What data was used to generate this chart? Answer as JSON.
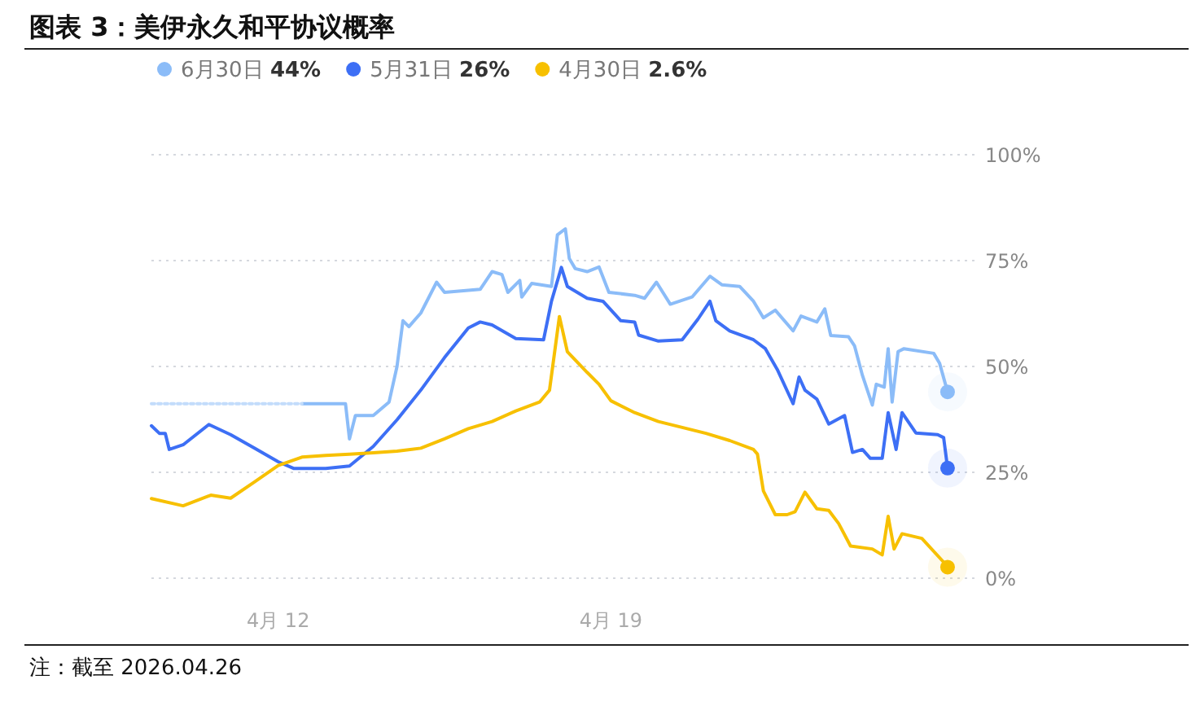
{
  "chart_data": {
    "type": "line",
    "title": "图表 3：美伊永久和平协议概率",
    "annotations": [
      "注：截至 2026.04.26"
    ],
    "xlim": [
      "2026-04-09T08:00",
      "2026-04-26T16:00"
    ],
    "xticks": [
      {
        "value": "2026-04-12",
        "label": "4月 12"
      },
      {
        "value": "2026-04-19",
        "label": "4月 19"
      }
    ],
    "ylim": [
      0,
      100
    ],
    "yticks": [
      {
        "value": 0,
        "label": "0%"
      },
      {
        "value": 25,
        "label": "25%"
      },
      {
        "value": 50,
        "label": "50%"
      },
      {
        "value": 75,
        "label": "75%"
      },
      {
        "value": 100,
        "label": "100%"
      }
    ],
    "grid": "y",
    "legend": "top left",
    "line_style": "solid",
    "series": [
      {
        "name": "6月30日 44%",
        "color": "#8bbcf8",
        "x": [
          "2026-04-12T12:00",
          "2026-04-13T10:00",
          "2026-04-13T12:00",
          "2026-04-13T15:00",
          "2026-04-14T00:00",
          "2026-04-14T08:00",
          "2026-04-14T12:00",
          "2026-04-14T15:00",
          "2026-04-14T18:00",
          "2026-04-15T00:00",
          "2026-04-15T08:00",
          "2026-04-15T12:00",
          "2026-04-16T06:00",
          "2026-04-16T12:00",
          "2026-04-16T17:00",
          "2026-04-16T20:00",
          "2026-04-17T02:00",
          "2026-04-17T03:00",
          "2026-04-17T08:00",
          "2026-04-17T18:00",
          "2026-04-17T21:00",
          "2026-04-18T01:00",
          "2026-04-18T03:00",
          "2026-04-18T06:00",
          "2026-04-18T12:00",
          "2026-04-18T18:00",
          "2026-04-18T23:00",
          "2026-04-19T12:00",
          "2026-04-19T17:00",
          "2026-04-19T23:00",
          "2026-04-20T06:00",
          "2026-04-20T17:00",
          "2026-04-21T02:00",
          "2026-04-21T08:00",
          "2026-04-21T17:00",
          "2026-04-22T00:00",
          "2026-04-22T05:00",
          "2026-04-22T11:00",
          "2026-04-22T20:00",
          "2026-04-23T00:00",
          "2026-04-23T08:00",
          "2026-04-23T12:00",
          "2026-04-23T15:00",
          "2026-04-24T00:00",
          "2026-04-24T03:00",
          "2026-04-24T07:00",
          "2026-04-24T12:00",
          "2026-04-24T14:00",
          "2026-04-24T18:00",
          "2026-04-24T20:00",
          "2026-04-24T22:00",
          "2026-04-25T01:00",
          "2026-04-25T04:00",
          "2026-04-25T19:00",
          "2026-04-25T22:00",
          "2026-04-26T02:00"
        ],
        "values": [
          41.2,
          41.2,
          32.9,
          38.4,
          38.4,
          41.6,
          50,
          60.8,
          59.4,
          62.6,
          69.9,
          67.5,
          68.2,
          72.4,
          71.7,
          67.5,
          70.3,
          66.4,
          69.6,
          68.9,
          81.1,
          82.5,
          75.5,
          73.1,
          72.4,
          73.5,
          67.5,
          66.8,
          66.1,
          69.9,
          64.7,
          66.4,
          71.3,
          69.3,
          68.9,
          65.4,
          61.5,
          63.3,
          58.4,
          61.9,
          60.5,
          63.6,
          57.3,
          57,
          54.9,
          47.9,
          40.9,
          45.8,
          45.1,
          54.2,
          41.6,
          53.5,
          54.2,
          53.1,
          50.7,
          44
        ]
      },
      {
        "color": "#c2dcfb",
        "line_style": "dotted",
        "marker": "none",
        "x": [
          "2026-04-09T08:00",
          "2026-04-12T12:00"
        ],
        "values": [
          41.2,
          41.2
        ]
      },
      {
        "name": "5月31日 26%",
        "color": "#3d6ff5",
        "x": [
          "2026-04-09T08:00",
          "2026-04-09T12:00",
          "2026-04-09T15:00",
          "2026-04-09T17:00",
          "2026-04-10T00:00",
          "2026-04-10T13:00",
          "2026-04-11T00:00",
          "2026-04-11T12:00",
          "2026-04-12T00:00",
          "2026-04-12T08:00",
          "2026-04-13T00:00",
          "2026-04-13T12:00",
          "2026-04-14T00:00",
          "2026-04-14T12:00",
          "2026-04-15T00:00",
          "2026-04-15T12:00",
          "2026-04-16T00:00",
          "2026-04-16T06:00",
          "2026-04-16T12:00",
          "2026-04-17T00:00",
          "2026-04-17T14:00",
          "2026-04-17T18:00",
          "2026-04-17T23:00",
          "2026-04-18T02:00",
          "2026-04-18T12:00",
          "2026-04-18T20:00",
          "2026-04-19T05:00",
          "2026-04-19T12:00",
          "2026-04-19T14:00",
          "2026-04-20T00:00",
          "2026-04-20T12:00",
          "2026-04-20T20:00",
          "2026-04-21T02:00",
          "2026-04-21T05:00",
          "2026-04-21T12:00",
          "2026-04-22T00:00",
          "2026-04-22T06:00",
          "2026-04-22T12:00",
          "2026-04-22T20:00",
          "2026-04-22T23:00",
          "2026-04-23T02:00",
          "2026-04-23T08:00",
          "2026-04-23T14:00",
          "2026-04-23T22:00",
          "2026-04-24T02:00",
          "2026-04-24T07:00",
          "2026-04-24T11:00",
          "2026-04-24T17:00",
          "2026-04-24T20:00",
          "2026-04-25T00:00",
          "2026-04-25T03:00",
          "2026-04-25T10:00",
          "2026-04-25T21:00",
          "2026-04-26T00:00",
          "2026-04-26T02:00"
        ],
        "values": [
          36,
          34.2,
          34.2,
          30.4,
          31.5,
          36.3,
          33.9,
          30.7,
          27.5,
          25.9,
          25.9,
          26.5,
          31.1,
          37.4,
          44.4,
          52.1,
          59.1,
          60.5,
          59.8,
          56.6,
          56.3,
          65.4,
          73.4,
          68.9,
          66.1,
          65.4,
          60.8,
          60.5,
          57.4,
          56,
          56.3,
          61.2,
          65.4,
          60.8,
          58.4,
          56.3,
          54.2,
          49.3,
          41.2,
          47.5,
          44.4,
          42.3,
          36.4,
          38.4,
          29.7,
          30.4,
          28.3,
          28.3,
          39.1,
          30.4,
          39.1,
          34.3,
          33.9,
          33.2,
          26
        ]
      },
      {
        "name": "4月30日 2.6%",
        "color": "#f7c000",
        "x": [
          "2026-04-09T08:00",
          "2026-04-10T00:00",
          "2026-04-10T14:00",
          "2026-04-11T00:00",
          "2026-04-11T12:00",
          "2026-04-12T00:00",
          "2026-04-12T12:00",
          "2026-04-13T00:00",
          "2026-04-13T12:00",
          "2026-04-14T00:00",
          "2026-04-14T12:00",
          "2026-04-15T00:00",
          "2026-04-15T12:00",
          "2026-04-16T00:00",
          "2026-04-16T12:00",
          "2026-04-17T00:00",
          "2026-04-17T12:00",
          "2026-04-17T17:00",
          "2026-04-17T22:00",
          "2026-04-18T02:00",
          "2026-04-18T12:00",
          "2026-04-18T18:00",
          "2026-04-19T00:00",
          "2026-04-19T12:00",
          "2026-04-20T00:00",
          "2026-04-20T12:00",
          "2026-04-21T00:00",
          "2026-04-21T12:00",
          "2026-04-22T00:00",
          "2026-04-22T02:00",
          "2026-04-22T05:00",
          "2026-04-22T11:00",
          "2026-04-22T17:00",
          "2026-04-22T21:00",
          "2026-04-23T02:00",
          "2026-04-23T08:00",
          "2026-04-23T14:00",
          "2026-04-23T19:00",
          "2026-04-24T01:00",
          "2026-04-24T12:00",
          "2026-04-24T17:00",
          "2026-04-24T20:00",
          "2026-04-24T23:00",
          "2026-04-25T03:00",
          "2026-04-25T13:00",
          "2026-04-26T00:00",
          "2026-04-26T02:00"
        ],
        "values": [
          18.8,
          17.1,
          19.6,
          18.9,
          22.7,
          26.6,
          28.6,
          29,
          29.3,
          29.6,
          30,
          30.7,
          32.9,
          35.3,
          37,
          39.5,
          41.6,
          44.4,
          61.8,
          53.5,
          48.6,
          45.8,
          41.9,
          39.1,
          37,
          35.6,
          34.2,
          32.5,
          30.4,
          29.3,
          20.6,
          15,
          15,
          15.7,
          20.3,
          16.4,
          16,
          12.9,
          7.6,
          6.9,
          5.5,
          14.6,
          6.9,
          10.5,
          9.4,
          3.8,
          2.6
        ]
      },
      {
        "type": "scatter",
        "marker": "circle",
        "color": "#8bbcf8",
        "x": [
          "2026-04-26T02:00"
        ],
        "values": [
          44
        ]
      },
      {
        "type": "scatter",
        "marker": "circle",
        "color": "#3d6ff5",
        "x": [
          "2026-04-26T02:00"
        ],
        "values": [
          26
        ]
      },
      {
        "type": "scatter",
        "marker": "circle",
        "color": "#f7c000",
        "x": [
          "2026-04-26T02:00"
        ],
        "values": [
          2.6
        ]
      }
    ]
  }
}
